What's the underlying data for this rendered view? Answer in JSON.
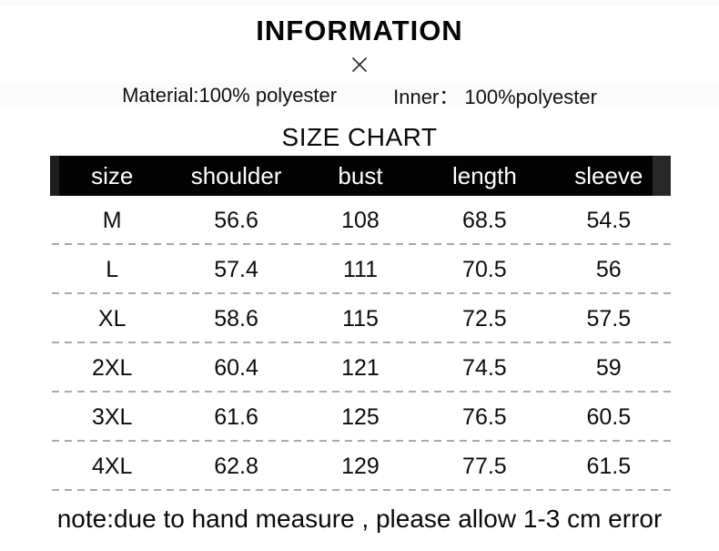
{
  "header": {
    "title": "INFORMATION",
    "close_icon": "✕"
  },
  "materials": {
    "outer": "Material:100% polyester",
    "inner": "Inner： 100%polyester"
  },
  "chart_data": {
    "type": "table",
    "title": "SIZE CHART",
    "columns": [
      "size",
      "shoulder",
      "bust",
      "length",
      "sleeve"
    ],
    "rows": [
      [
        "M",
        "56.6",
        "108",
        "68.5",
        "54.5"
      ],
      [
        "L",
        "57.4",
        "111",
        "70.5",
        "56"
      ],
      [
        "XL",
        "58.6",
        "115",
        "72.5",
        "57.5"
      ],
      [
        "2XL",
        "60.4",
        "121",
        "74.5",
        "59"
      ],
      [
        "3XL",
        "61.6",
        "125",
        "76.5",
        "60.5"
      ],
      [
        "4XL",
        "62.8",
        "129",
        "77.5",
        "61.5"
      ]
    ]
  },
  "note": "note:due to hand measure , please allow 1-3 cm error",
  "colors": {
    "background": "#ffffff",
    "header_bar_bg": "#000000",
    "header_bar_text": "#ffffff",
    "body_text": "#0d0d0d",
    "dashed_line": "#a9a9a9",
    "material_band_bg": "#fafbfd",
    "top_band_bg": "#fafafa"
  }
}
